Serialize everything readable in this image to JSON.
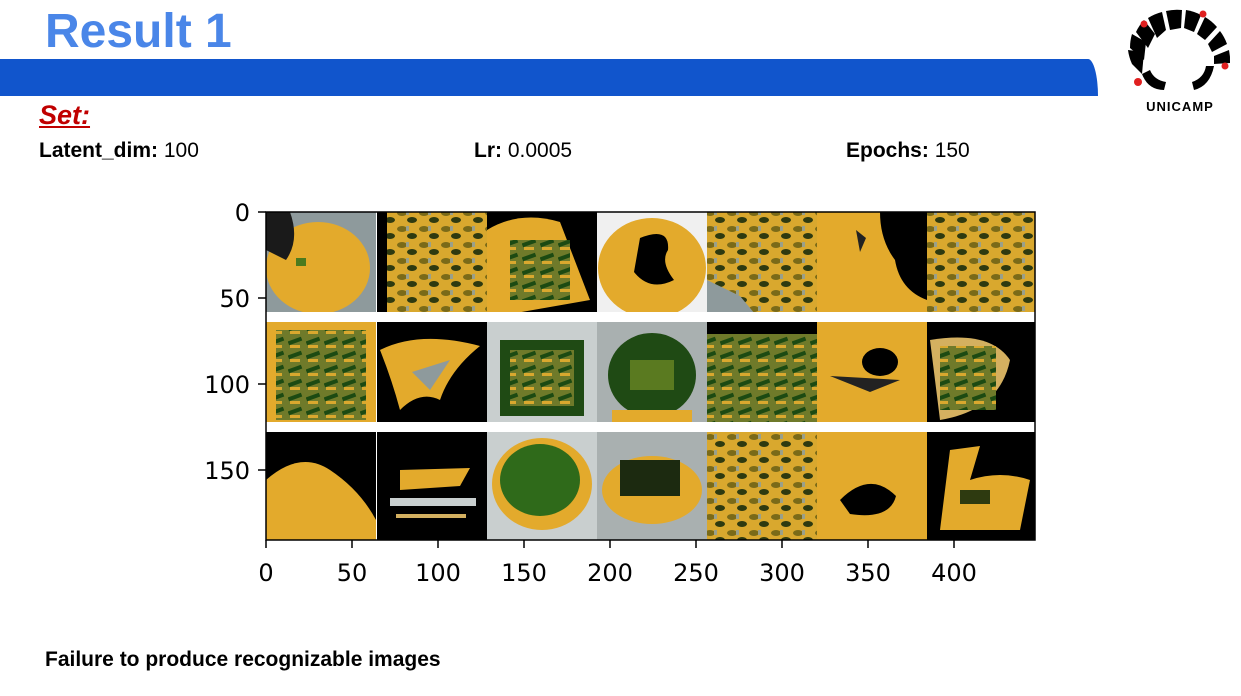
{
  "slide": {
    "title": "Result 1",
    "logo_text": "UNICAMP",
    "set_label": "Set:",
    "params": [
      {
        "label": "Latent_dim:",
        "value": "100"
      },
      {
        "label": "Lr:",
        "value": "0.0005"
      },
      {
        "label": "Epochs:",
        "value": "150"
      }
    ],
    "caption": "Failure to produce recognizable images"
  },
  "colors": {
    "title": "#4a86e8",
    "bar": "#1155cc",
    "set_label": "#c00000"
  },
  "figure": {
    "y_ticks": [
      "0",
      "50",
      "100",
      "150"
    ],
    "x_ticks": [
      "0",
      "50",
      "100",
      "150",
      "200",
      "250",
      "300",
      "350",
      "400"
    ],
    "grid": {
      "rows": 3,
      "cols": 7
    },
    "tiles": [
      "mostly-yellow",
      "crop-field",
      "green-rows",
      "yellow-dark-center",
      "crop-field",
      "yellow-dark",
      "crop-field",
      "green-rows",
      "yellow-gray",
      "green-patch",
      "green-patch",
      "green-rows",
      "yellow-dark",
      "green-rows",
      "dark-yellow",
      "dark-stripes",
      "green-blob",
      "gray-green",
      "crop-field",
      "yellow-dark",
      "dark-yellow"
    ]
  }
}
